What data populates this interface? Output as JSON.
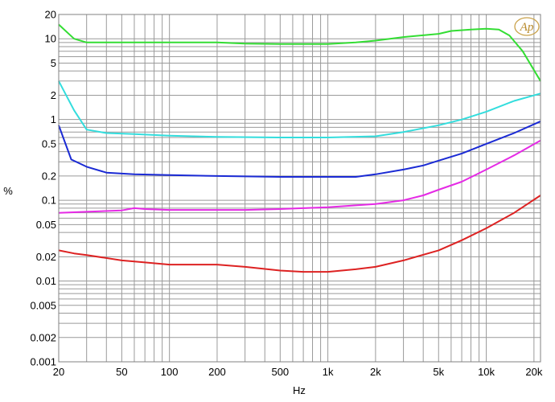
{
  "chart_data": {
    "type": "line",
    "xscale": "log",
    "yscale": "log",
    "xlim": [
      20,
      22000
    ],
    "ylim": [
      0.001,
      20
    ],
    "xlabel": "Hz",
    "ylabel": "%",
    "grid": true,
    "logo_text": "Ap",
    "xticks": [
      {
        "v": 20,
        "label": "20"
      },
      {
        "v": 50,
        "label": "50"
      },
      {
        "v": 100,
        "label": "100"
      },
      {
        "v": 200,
        "label": "200"
      },
      {
        "v": 500,
        "label": "500"
      },
      {
        "v": 1000,
        "label": "1k"
      },
      {
        "v": 2000,
        "label": "2k"
      },
      {
        "v": 5000,
        "label": "5k"
      },
      {
        "v": 10000,
        "label": "10k"
      },
      {
        "v": 20000,
        "label": "20k"
      }
    ],
    "yticks": [
      {
        "v": 20,
        "label": "20"
      },
      {
        "v": 10,
        "label": "10"
      },
      {
        "v": 5,
        "label": "5"
      },
      {
        "v": 2,
        "label": "2"
      },
      {
        "v": 1,
        "label": "1"
      },
      {
        "v": 0.5,
        "label": "0.5"
      },
      {
        "v": 0.2,
        "label": "0.2"
      },
      {
        "v": 0.1,
        "label": "0.1"
      },
      {
        "v": 0.05,
        "label": "0.05"
      },
      {
        "v": 0.02,
        "label": "0.02"
      },
      {
        "v": 0.01,
        "label": "0.01"
      },
      {
        "v": 0.005,
        "label": "0.005"
      },
      {
        "v": 0.002,
        "label": "0.002"
      },
      {
        "v": 0.001,
        "label": "0.001"
      }
    ],
    "series": [
      {
        "color": "#33dd33",
        "points": [
          [
            20,
            15
          ],
          [
            25,
            10
          ],
          [
            30,
            9
          ],
          [
            50,
            9
          ],
          [
            100,
            9
          ],
          [
            200,
            9
          ],
          [
            300,
            8.7
          ],
          [
            500,
            8.6
          ],
          [
            1000,
            8.6
          ],
          [
            1500,
            9
          ],
          [
            2000,
            9.5
          ],
          [
            3000,
            10.5
          ],
          [
            5000,
            11.5
          ],
          [
            6000,
            12.5
          ],
          [
            8000,
            13
          ],
          [
            10000,
            13.3
          ],
          [
            12000,
            13
          ],
          [
            14000,
            11
          ],
          [
            17000,
            7
          ],
          [
            22000,
            3
          ]
        ]
      },
      {
        "color": "#33dddd",
        "points": [
          [
            20,
            3
          ],
          [
            25,
            1.3
          ],
          [
            30,
            0.75
          ],
          [
            40,
            0.68
          ],
          [
            60,
            0.66
          ],
          [
            100,
            0.63
          ],
          [
            200,
            0.61
          ],
          [
            500,
            0.6
          ],
          [
            1000,
            0.6
          ],
          [
            2000,
            0.62
          ],
          [
            3000,
            0.7
          ],
          [
            5000,
            0.85
          ],
          [
            7000,
            1.0
          ],
          [
            10000,
            1.25
          ],
          [
            15000,
            1.7
          ],
          [
            22000,
            2.1
          ]
        ]
      },
      {
        "color": "#1a2ad4",
        "points": [
          [
            20,
            0.85
          ],
          [
            24,
            0.32
          ],
          [
            30,
            0.26
          ],
          [
            40,
            0.22
          ],
          [
            60,
            0.21
          ],
          [
            100,
            0.205
          ],
          [
            200,
            0.2
          ],
          [
            500,
            0.195
          ],
          [
            1000,
            0.195
          ],
          [
            1500,
            0.195
          ],
          [
            2000,
            0.21
          ],
          [
            3000,
            0.24
          ],
          [
            4000,
            0.27
          ],
          [
            5000,
            0.31
          ],
          [
            7000,
            0.38
          ],
          [
            10000,
            0.5
          ],
          [
            15000,
            0.68
          ],
          [
            22000,
            0.95
          ]
        ]
      },
      {
        "color": "#e52ae5",
        "points": [
          [
            20,
            0.07
          ],
          [
            30,
            0.072
          ],
          [
            50,
            0.075
          ],
          [
            60,
            0.08
          ],
          [
            70,
            0.078
          ],
          [
            100,
            0.076
          ],
          [
            200,
            0.076
          ],
          [
            300,
            0.076
          ],
          [
            500,
            0.078
          ],
          [
            700,
            0.08
          ],
          [
            1000,
            0.082
          ],
          [
            2000,
            0.09
          ],
          [
            3000,
            0.1
          ],
          [
            4000,
            0.115
          ],
          [
            5000,
            0.135
          ],
          [
            7000,
            0.17
          ],
          [
            10000,
            0.24
          ],
          [
            15000,
            0.36
          ],
          [
            22000,
            0.55
          ]
        ]
      },
      {
        "color": "#dd2222",
        "points": [
          [
            20,
            0.024
          ],
          [
            25,
            0.022
          ],
          [
            30,
            0.021
          ],
          [
            50,
            0.018
          ],
          [
            70,
            0.017
          ],
          [
            100,
            0.016
          ],
          [
            150,
            0.016
          ],
          [
            200,
            0.016
          ],
          [
            300,
            0.015
          ],
          [
            500,
            0.0135
          ],
          [
            700,
            0.013
          ],
          [
            1000,
            0.013
          ],
          [
            1500,
            0.014
          ],
          [
            2000,
            0.015
          ],
          [
            3000,
            0.018
          ],
          [
            5000,
            0.024
          ],
          [
            7000,
            0.032
          ],
          [
            10000,
            0.045
          ],
          [
            15000,
            0.07
          ],
          [
            22000,
            0.115
          ]
        ]
      }
    ]
  }
}
